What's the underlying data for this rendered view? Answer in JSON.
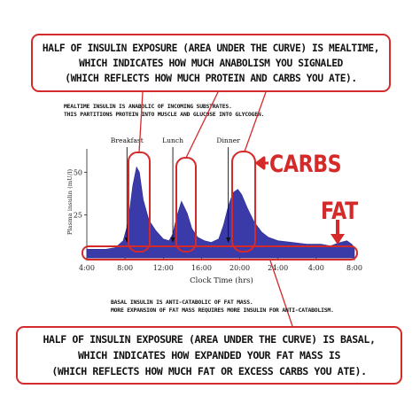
{
  "callouts": {
    "top": [
      "HALF OF INSULIN EXPOSURE (AREA UNDER THE CURVE) IS MEALTIME,",
      "WHICH INDICATES HOW MUCH ANABOLISM YOU SIGNALED",
      "(WHICH REFLECTS HOW MUCH PROTEIN AND CARBS YOU ATE)."
    ],
    "bottom": [
      "HALF OF INSULIN EXPOSURE (AREA UNDER THE CURVE) IS BASAL,",
      "WHICH INDICATES HOW EXPANDED YOUR FAT MASS IS",
      "(WHICH REFLECTS HOW MUCH FAT OR EXCESS CARBS YOU ATE)."
    ]
  },
  "notes": {
    "mealtime": [
      "MEALTIME INSULIN IS ANABOLIC OF INCOMING SUBSTRATES.",
      "THIS PARTITIONS PROTEIN INTO MUSCLE AND GLUCOSE INTO GLYCOGEN."
    ],
    "basal": [
      "BASAL INSULIN IS ANTI-CATABOLIC OF FAT MASS.",
      "MORE EXPANSION OF FAT MASS REQUIRES MORE INSULIN FOR ANTI-CATABOLISM."
    ]
  },
  "labels": {
    "carbs": "CARBS",
    "fat": "FAT"
  },
  "colors": {
    "accent_red": "#d42a2a",
    "area_fill": "#3a3aa8",
    "text": "#111111"
  },
  "chart_data": {
    "type": "area",
    "title": "",
    "xlabel": "Clock Time (hrs)",
    "ylabel": "Plasma insulin (mU/l)",
    "x_tick_labels": [
      "4:00",
      "8:00",
      "12:00",
      "16:00",
      "20:00",
      "24:00",
      "4:00",
      "8:00"
    ],
    "x_ticks": [
      4,
      8,
      12,
      16,
      20,
      24,
      28,
      32
    ],
    "xlim": [
      4,
      32
    ],
    "y_ticks": [
      25,
      50
    ],
    "ylim": [
      0,
      60
    ],
    "meal_annotations": [
      {
        "label": "Breakfast",
        "x": 8.2
      },
      {
        "label": "Lunch",
        "x": 13.0
      },
      {
        "label": "Dinner",
        "x": 18.8
      }
    ],
    "series": [
      {
        "x": [
          4,
          5,
          6,
          7,
          7.8,
          8.3,
          8.8,
          9.2,
          9.5,
          9.9,
          10.5,
          11.2,
          12,
          12.6,
          13,
          13.4,
          13.9,
          14.5,
          15,
          15.6,
          16.3,
          17,
          17.8,
          18.3,
          18.8,
          19.3,
          19.8,
          20.2,
          20.8,
          21.5,
          22.3,
          23,
          24,
          25.5,
          27,
          28.5,
          29.5,
          30.5,
          31.2,
          31.7,
          32
        ],
        "y": [
          5,
          5,
          5,
          6,
          10,
          20,
          42,
          53,
          50,
          34,
          22,
          16,
          11,
          10,
          14,
          24,
          33,
          26,
          17,
          12,
          10,
          9,
          11,
          19,
          30,
          38,
          40,
          37,
          29,
          21,
          15,
          12,
          10,
          9,
          8,
          8,
          7,
          9,
          10,
          8,
          6
        ]
      }
    ]
  }
}
